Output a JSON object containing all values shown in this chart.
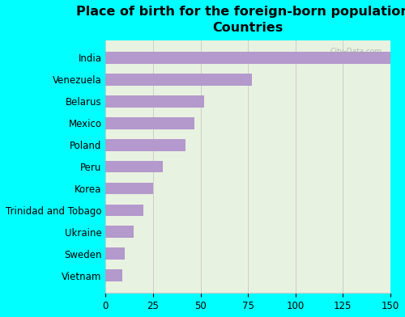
{
  "title": "Place of birth for the foreign-born population -\nCountries",
  "categories": [
    "India",
    "Venezuela",
    "Belarus",
    "Mexico",
    "Poland",
    "Peru",
    "Korea",
    "Trinidad and Tobago",
    "Ukraine",
    "Sweden",
    "Vietnam"
  ],
  "values": [
    150,
    77,
    52,
    47,
    42,
    30,
    25,
    20,
    15,
    10,
    9
  ],
  "bar_color": "#b399cc",
  "background_outer": "#00ffff",
  "background_inner": "#e8f2e0",
  "xlim": [
    0,
    150
  ],
  "xticks": [
    0,
    25,
    50,
    75,
    100,
    125,
    150
  ],
  "watermark": "City-Data.com",
  "bar_height": 0.55,
  "grid_color": "#cccccc",
  "ylabel_fontsize": 8.5,
  "xlabel_fontsize": 8.5,
  "title_fontsize": 11.5
}
